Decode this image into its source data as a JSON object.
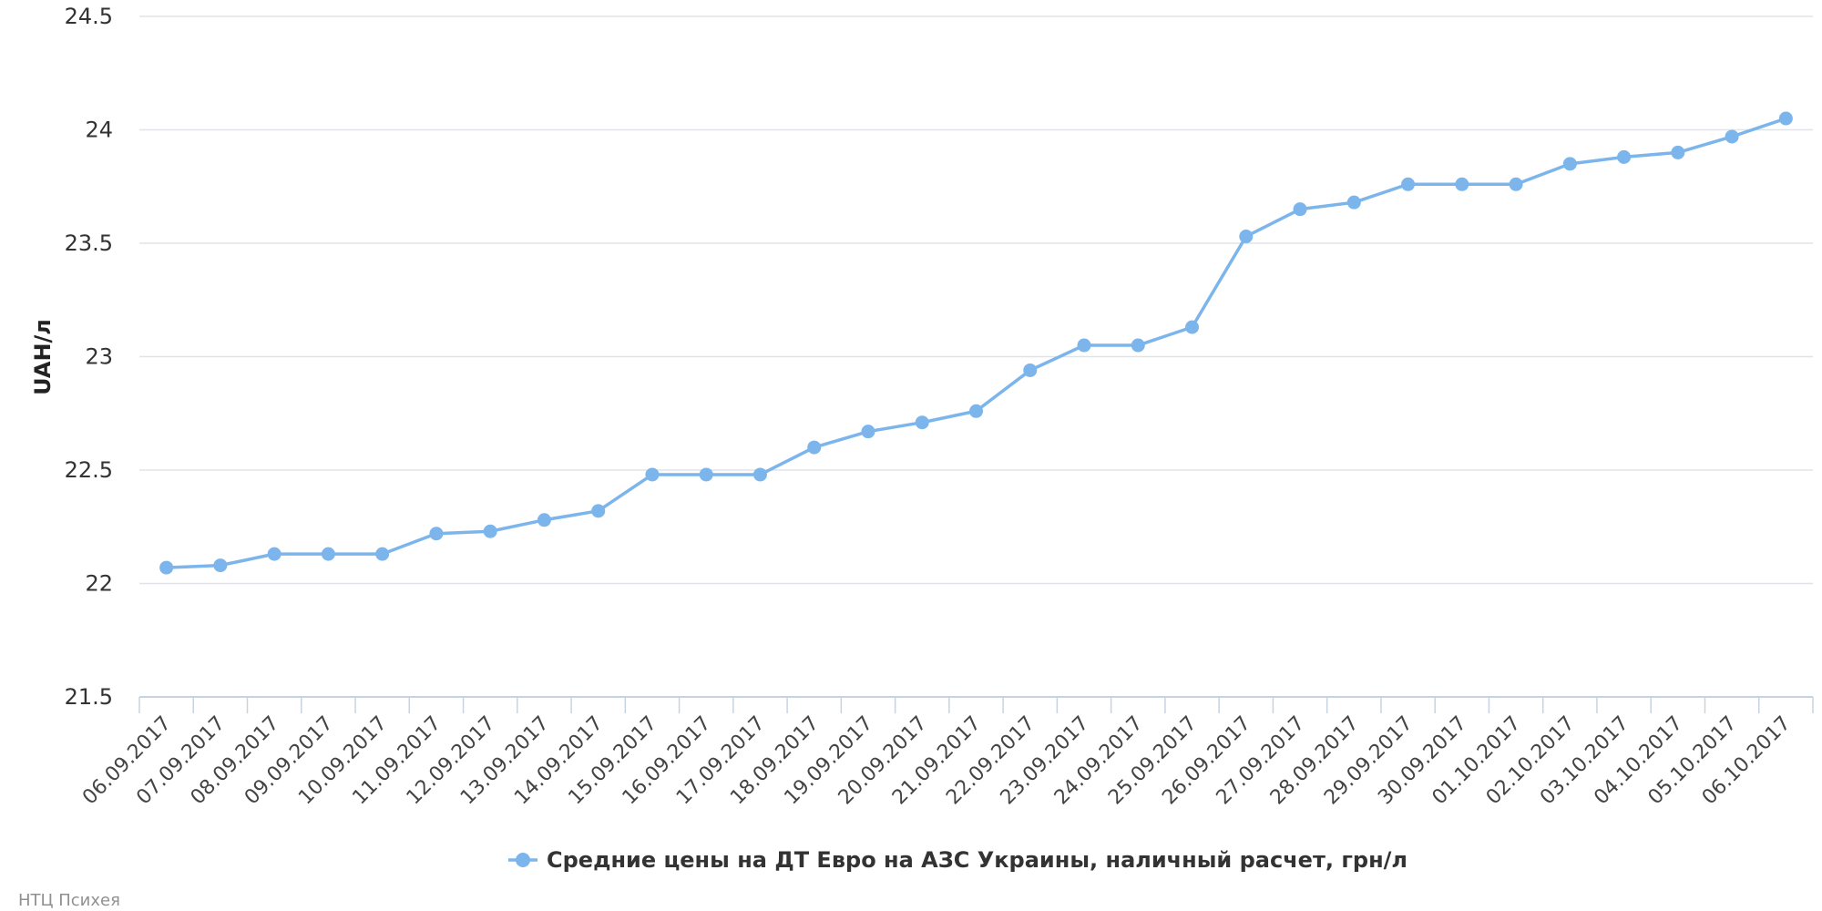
{
  "chart_data": {
    "type": "line",
    "ylabel": "UAH/л",
    "ylim": [
      21.5,
      24.5
    ],
    "yticks": [
      21.5,
      22,
      22.5,
      23,
      23.5,
      24,
      24.5
    ],
    "categories": [
      "06.09.2017",
      "07.09.2017",
      "08.09.2017",
      "09.09.2017",
      "10.09.2017",
      "11.09.2017",
      "12.09.2017",
      "13.09.2017",
      "14.09.2017",
      "15.09.2017",
      "16.09.2017",
      "17.09.2017",
      "18.09.2017",
      "19.09.2017",
      "20.09.2017",
      "21.09.2017",
      "22.09.2017",
      "23.09.2017",
      "24.09.2017",
      "25.09.2017",
      "26.09.2017",
      "27.09.2017",
      "28.09.2017",
      "29.09.2017",
      "30.09.2017",
      "01.10.2017",
      "02.10.2017",
      "03.10.2017",
      "04.10.2017",
      "05.10.2017",
      "06.10.2017"
    ],
    "series": [
      {
        "name": "Средние цены на ДТ Евро на АЗС Украины, наличный расчет, грн/л",
        "color": "#7cb5ec",
        "values": [
          22.07,
          22.08,
          22.13,
          22.13,
          22.13,
          22.22,
          22.23,
          22.28,
          22.32,
          22.48,
          22.48,
          22.48,
          22.6,
          22.67,
          22.71,
          22.76,
          22.94,
          23.05,
          23.05,
          23.13,
          23.53,
          23.65,
          23.68,
          23.76,
          23.76,
          23.76,
          23.85,
          23.88,
          23.9,
          23.97,
          24.05
        ]
      }
    ],
    "grid": true,
    "legend": "bottom-center"
  },
  "credits": "НТЦ Психея"
}
